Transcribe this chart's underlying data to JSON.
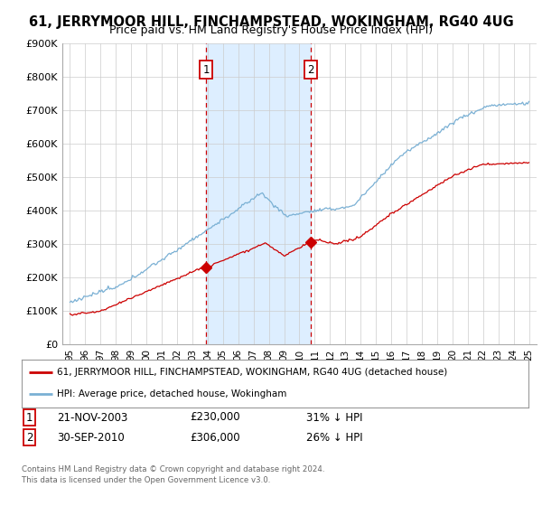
{
  "title": "61, JERRYMOOR HILL, FINCHAMPSTEAD, WOKINGHAM, RG40 4UG",
  "subtitle": "Price paid vs. HM Land Registry's House Price Index (HPI)",
  "title_fontsize": 10.5,
  "subtitle_fontsize": 9,
  "background_color": "#ffffff",
  "plot_bg_color": "#ffffff",
  "grid_color": "#cccccc",
  "ylim": [
    0,
    900000
  ],
  "yticks": [
    0,
    100000,
    200000,
    300000,
    400000,
    500000,
    600000,
    700000,
    800000,
    900000
  ],
  "ytick_labels": [
    "£0",
    "£100K",
    "£200K",
    "£300K",
    "£400K",
    "£500K",
    "£600K",
    "£700K",
    "£800K",
    "£900K"
  ],
  "sale1_date": 2003.9,
  "sale1_price": 230000,
  "sale1_label": "1",
  "sale1_text": "21-NOV-2003",
  "sale1_amount": "£230,000",
  "sale1_pct": "31% ↓ HPI",
  "sale2_date": 2010.75,
  "sale2_price": 306000,
  "sale2_label": "2",
  "sale2_text": "30-SEP-2010",
  "sale2_amount": "£306,000",
  "sale2_pct": "26% ↓ HPI",
  "line1_color": "#cc0000",
  "line2_color": "#7ab0d4",
  "shade_color": "#ddeeff",
  "vline_color": "#cc0000",
  "legend_line1": "61, JERRYMOOR HILL, FINCHAMPSTEAD, WOKINGHAM, RG40 4UG (detached house)",
  "legend_line2": "HPI: Average price, detached house, Wokingham",
  "footer1": "Contains HM Land Registry data © Crown copyright and database right 2024.",
  "footer2": "This data is licensed under the Open Government Licence v3.0."
}
